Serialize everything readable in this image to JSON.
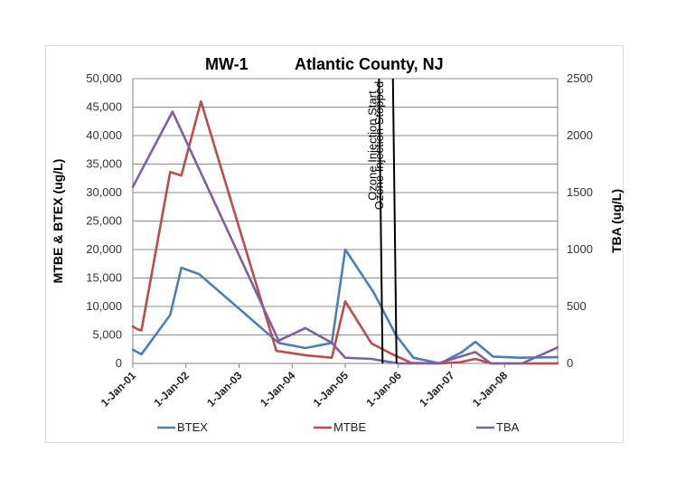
{
  "chart_data": {
    "type": "line",
    "title_left": "MW-1",
    "title_right": "Atlantic County, NJ",
    "ylabel": "MTBE & BTEX (ug/L)",
    "ylabel_right": "TBA (ug/L)",
    "ylim": [
      0,
      50000
    ],
    "ylim_right": [
      0,
      2500
    ],
    "y_ticks": [
      "0",
      "5,000",
      "10,000",
      "15,000",
      "20,000",
      "25,000",
      "30,000",
      "35,000",
      "40,000",
      "45,000",
      "50,000"
    ],
    "y_ticks_right": [
      "0",
      "500",
      "1000",
      "1500",
      "2000",
      "2500"
    ],
    "x_ticks": [
      "1-Jan-01",
      "1-Jan-02",
      "1-Jan-03",
      "1-Jan-04",
      "1-Jan-05",
      "1-Jan-06",
      "1-Jan-07",
      "1-Jan-08"
    ],
    "series": [
      {
        "name": "BTEX",
        "color": "#4a7ebb",
        "axis": "left",
        "points": [
          [
            "2001-01-01",
            2400
          ],
          [
            "2001-03-01",
            1600
          ],
          [
            "2001-09-15",
            8500
          ],
          [
            "2001-12-01",
            16800
          ],
          [
            "2002-04-01",
            15700
          ],
          [
            "2003-10-01",
            3600
          ],
          [
            "2004-04-01",
            2700
          ],
          [
            "2004-10-01",
            3600
          ],
          [
            "2005-01-01",
            20000
          ],
          [
            "2005-07-15",
            12500
          ],
          [
            "2005-12-15",
            5000
          ],
          [
            "2006-04-15",
            1000
          ],
          [
            "2006-10-15",
            0
          ],
          [
            "2007-03-15",
            2000
          ],
          [
            "2007-06-15",
            3800
          ],
          [
            "2007-10-15",
            1200
          ],
          [
            "2008-04-15",
            1000
          ],
          [
            "2008-12-31",
            1100
          ]
        ]
      },
      {
        "name": "MTBE",
        "color": "#be4b48",
        "axis": "left",
        "points": [
          [
            "2001-01-01",
            6500
          ],
          [
            "2001-02-01",
            6000
          ],
          [
            "2001-03-01",
            5800
          ],
          [
            "2001-09-15",
            33600
          ],
          [
            "2001-12-01",
            33000
          ],
          [
            "2002-04-15",
            46000
          ],
          [
            "2003-09-15",
            2200
          ],
          [
            "2004-04-15",
            1400
          ],
          [
            "2004-10-01",
            1000
          ],
          [
            "2005-01-01",
            10900
          ],
          [
            "2005-07-01",
            3500
          ],
          [
            "2005-12-01",
            1500
          ],
          [
            "2006-04-01",
            100
          ],
          [
            "2006-10-01",
            0
          ],
          [
            "2007-03-01",
            200
          ],
          [
            "2007-06-15",
            800
          ],
          [
            "2007-10-01",
            0
          ],
          [
            "2008-04-01",
            0
          ],
          [
            "2008-12-31",
            0
          ]
        ]
      },
      {
        "name": "TBA",
        "color": "#7d60a0",
        "axis": "right",
        "points": [
          [
            "2001-01-01",
            1550
          ],
          [
            "2001-10-01",
            2210
          ],
          [
            "2003-10-01",
            200
          ],
          [
            "2004-04-01",
            310
          ],
          [
            "2004-10-01",
            180
          ],
          [
            "2005-01-01",
            50
          ],
          [
            "2005-07-01",
            40
          ],
          [
            "2006-01-01",
            0
          ],
          [
            "2006-10-01",
            0
          ],
          [
            "2007-06-15",
            100
          ],
          [
            "2007-10-01",
            0
          ],
          [
            "2008-05-01",
            0
          ],
          [
            "2008-12-31",
            140
          ]
        ]
      }
    ],
    "annotations": [
      {
        "label": "Ozone Injection Start",
        "date": "2005-09-15",
        "y_top": 50000
      },
      {
        "label": "Ozone Injection Stopped",
        "date": "2005-12-20",
        "y_top": 50000
      }
    ],
    "grid": true,
    "legend_position": "bottom"
  }
}
